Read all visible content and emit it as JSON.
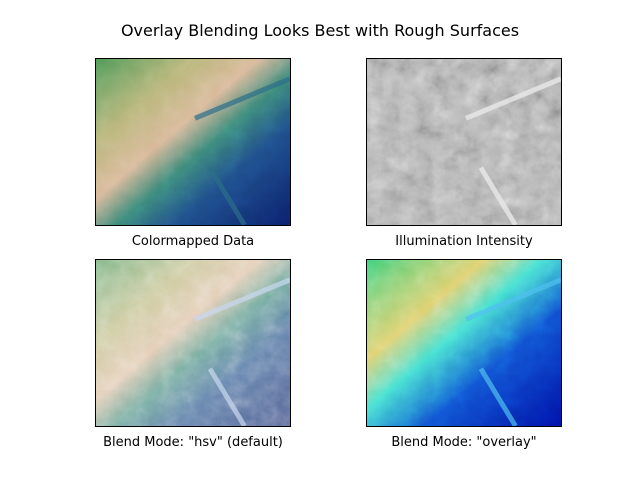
{
  "figure": {
    "title": "Overlay Blending Looks Best with Rough Surfaces",
    "panels": [
      {
        "label": "Colormapped Data",
        "colormap": "gist_earth"
      },
      {
        "label": "Illumination Intensity",
        "colormap": "gray"
      },
      {
        "label": "Blend Mode: \"hsv\" (default)",
        "colormap": "gist_earth"
      },
      {
        "label": "Blend Mode: \"overlay\"",
        "colormap": "gist_earth"
      }
    ]
  }
}
